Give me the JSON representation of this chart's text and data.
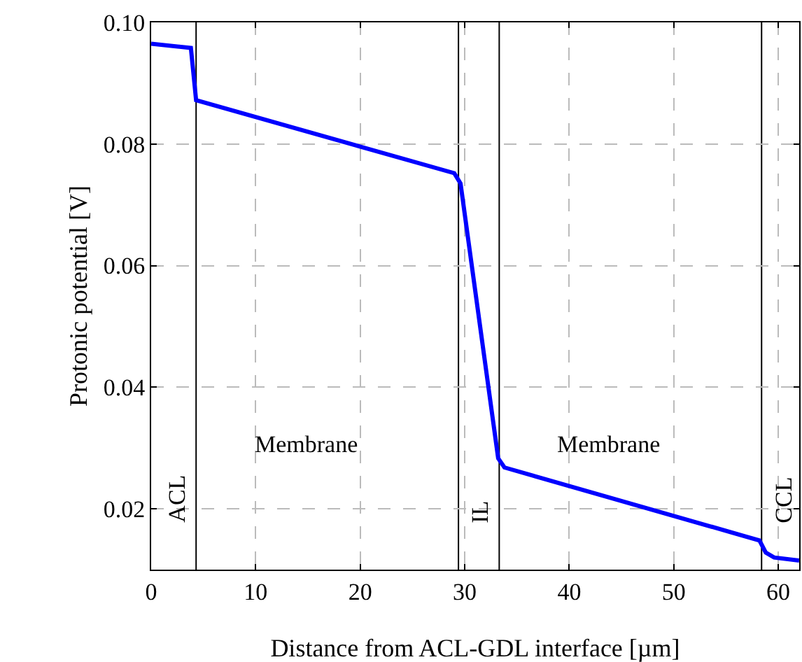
{
  "chart_data": {
    "type": "line",
    "xlabel": "Distance from ACL-GDL interface [µm]",
    "ylabel": "Protonic potential [V]",
    "x": [
      0,
      3.8,
      4.3,
      29,
      29.6,
      33.2,
      33.8,
      58.2,
      58.8,
      59.6,
      62
    ],
    "series": [
      {
        "color": "#0000ff",
        "values": [
          0.0965,
          0.0958,
          0.0872,
          0.0752,
          0.0735,
          0.0283,
          0.0268,
          0.0148,
          0.0128,
          0.012,
          0.0115
        ]
      }
    ],
    "xlim": [
      0,
      62
    ],
    "ylim": [
      0.01,
      0.1
    ],
    "xticks": [
      0,
      10,
      20,
      30,
      40,
      50,
      60
    ],
    "yticks": [
      {
        "value": 0.02,
        "label": "0.02"
      },
      {
        "value": 0.04,
        "label": "0.04"
      },
      {
        "value": 0.06,
        "label": "0.06"
      },
      {
        "value": 0.08,
        "label": "0.08"
      },
      {
        "value": 0.1,
        "label": "0.10"
      }
    ],
    "grid": true,
    "marker": "none",
    "line_style": "solid",
    "ref_lines": [
      {
        "axis": "x",
        "value": 4.3,
        "label": "ACL",
        "color": "#000000"
      },
      {
        "axis": "x",
        "value": 29.4,
        "color": "#000000"
      },
      {
        "axis": "x",
        "value": 33.3,
        "label": "IL",
        "color": "#000000"
      },
      {
        "axis": "x",
        "value": 58.4,
        "label": "CCL",
        "color": "#000000"
      }
    ],
    "annotations": [
      "Membrane",
      "Membrane"
    ]
  }
}
